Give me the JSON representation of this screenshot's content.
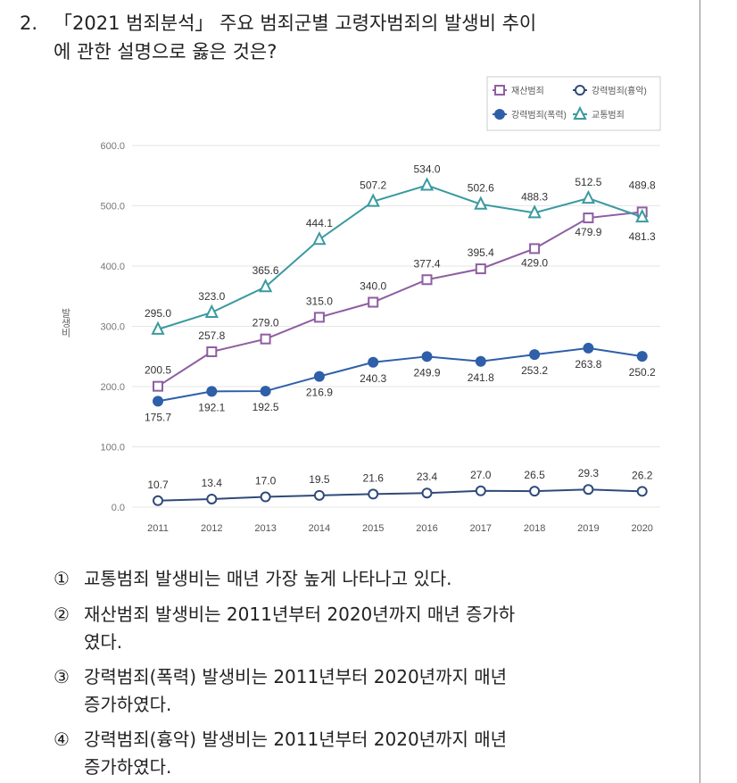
{
  "question": {
    "number": "2.",
    "line1": "「2021 범죄분석」 주요 범죄군별 고령자범죄의 발생비 추이",
    "line2": "에 관한 설명으로 옳은 것은?"
  },
  "chart_data": {
    "type": "line",
    "ylabel": "발생비",
    "xlabel": "",
    "categories": [
      "2011",
      "2012",
      "2013",
      "2014",
      "2015",
      "2016",
      "2017",
      "2018",
      "2019",
      "2020"
    ],
    "ylim": [
      0,
      600
    ],
    "yticks": [
      "0.0",
      "100.0",
      "200.0",
      "300.0",
      "400.0",
      "500.0",
      "600.0"
    ],
    "grid": true,
    "legend_position": "top-right",
    "series": [
      {
        "name": "재산범죄",
        "marker": "square-open",
        "color": "#8e5ea2",
        "values": [
          200.5,
          257.8,
          279.0,
          315.0,
          340.0,
          377.4,
          395.4,
          429.0,
          479.9,
          489.8
        ],
        "labels": [
          "200.5",
          "257.8",
          "279.0",
          "315.0",
          "340.0",
          "377.4",
          "395.4",
          "429.0",
          "479.9",
          "489.8"
        ]
      },
      {
        "name": "강력범죄(흉악)",
        "marker": "circle-open",
        "color": "#2f4a7a",
        "values": [
          10.7,
          13.4,
          17.0,
          19.5,
          21.6,
          23.4,
          27.0,
          26.5,
          29.3,
          26.2
        ],
        "labels": [
          "10.7",
          "13.4",
          "17.0",
          "19.5",
          "21.6",
          "23.4",
          "27.0",
          "26.5",
          "29.3",
          "26.2"
        ]
      },
      {
        "name": "강력범죄(폭력)",
        "marker": "circle-filled",
        "color": "#2e5fa8",
        "values": [
          175.7,
          192.1,
          192.5,
          216.9,
          240.3,
          249.9,
          241.8,
          253.2,
          263.8,
          250.2
        ],
        "labels": [
          "175.7",
          "192.1",
          "192.5",
          "216.9",
          "240.3",
          "249.9",
          "241.8",
          "253.2",
          "263.8",
          "250.2"
        ]
      },
      {
        "name": "교통범죄",
        "marker": "triangle-open",
        "color": "#3a9aa0",
        "values": [
          295.0,
          323.0,
          365.6,
          444.1,
          507.2,
          534.0,
          502.6,
          488.3,
          512.5,
          481.3
        ],
        "labels": [
          "295.0",
          "323.0",
          "365.6",
          "444.1",
          "507.2",
          "534.0",
          "502.6",
          "488.3",
          "512.5",
          "481.3"
        ]
      }
    ]
  },
  "options": [
    {
      "mark": "①",
      "line1": "교통범죄 발생비는 매년 가장 높게 나타나고 있다.",
      "line2": ""
    },
    {
      "mark": "②",
      "line1": "재산범죄 발생비는 2011년부터 2020년까지 매년 증가하",
      "line2": "였다."
    },
    {
      "mark": "③",
      "line1": "강력범죄(폭력) 발생비는 2011년부터 2020년까지 매년",
      "line2": "증가하였다."
    },
    {
      "mark": "④",
      "line1": "강력범죄(흉악) 발생비는 2011년부터 2020년까지 매년",
      "line2": "증가하였다."
    }
  ]
}
